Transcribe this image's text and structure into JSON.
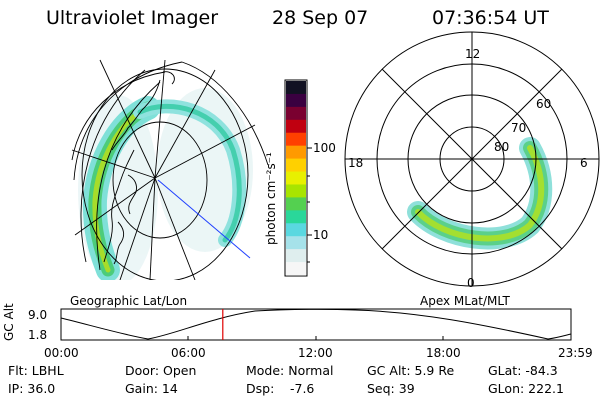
{
  "header": {
    "title": "Ultraviolet Imager",
    "date": "28 Sep 07",
    "time": "07:36:54 UT"
  },
  "colorbar": {
    "unit_label": "photon cm⁻²s⁻¹",
    "ticks": [
      {
        "label": "100"
      },
      {
        "label": "10"
      }
    ],
    "colors": [
      "#111122",
      "#3a0040",
      "#7a0030",
      "#c00010",
      "#ff4000",
      "#ff9a00",
      "#ffd000",
      "#e8f000",
      "#a8e400",
      "#54d050",
      "#2ad79a",
      "#5ad8e0",
      "#a6e2ea",
      "#dfeeee",
      "#f6f6f6"
    ]
  },
  "left_map": {
    "caption": "Geographic Lat/Lon"
  },
  "right_polar": {
    "caption": "Apex MLat/MLT",
    "mlt_labels": [
      "12",
      "18",
      "6",
      "0"
    ],
    "lat_labels": [
      "60",
      "70",
      "80"
    ]
  },
  "timeline": {
    "ylabel": "GC Alt",
    "ytick_top": "9.0",
    "ytick_bottom": "1.8",
    "xticks": [
      "00:00",
      "06:00",
      "12:00",
      "18:00",
      "23:59"
    ],
    "marker_hour": 7.615,
    "marker_color": "#e00000"
  },
  "info": {
    "filter": "Flt: LBHL",
    "ip": "IP: 36.0",
    "door": "Door: Open",
    "gain": "Gain: 14",
    "mode": "Mode: Normal",
    "dsp_label": "Dsp:",
    "dsp_value": "-7.6",
    "gc_alt": "GC Alt: 5.9 Re",
    "seq": "Seq: 39",
    "glat": "GLat: -84.3",
    "glon": "GLon: 222.1"
  }
}
